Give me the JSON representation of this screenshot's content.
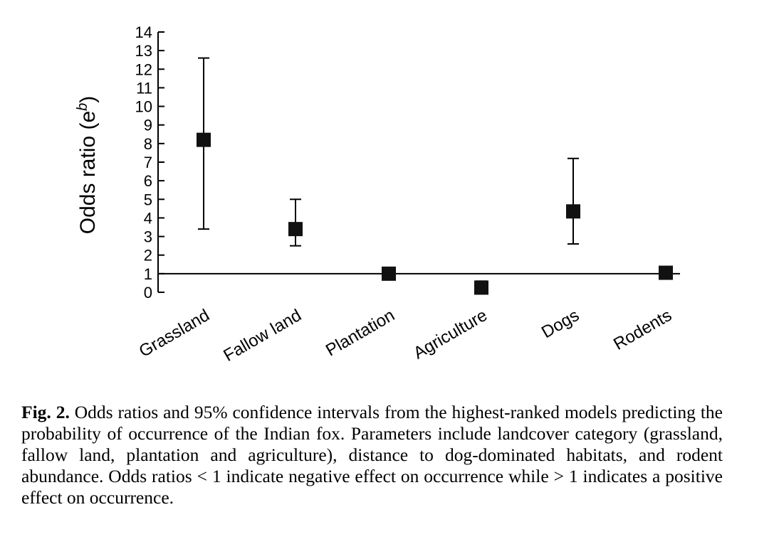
{
  "chart_data": {
    "type": "scatter",
    "title": "",
    "ylabel": "Odds ratio (e",
    "ylabel_sup": "b",
    "ylabel_close": ")",
    "xlabel": "",
    "ylim": [
      0,
      14
    ],
    "yticks": [
      "0",
      "1",
      "2",
      "3",
      "4",
      "5",
      "6",
      "7",
      "8",
      "9",
      "10",
      "11",
      "12",
      "13",
      "14"
    ],
    "reference_line": 1,
    "grid": false,
    "categories": [
      "Grassland",
      "Fallow land",
      "Plantation",
      "Agriculture",
      "Dogs",
      "Rodents"
    ],
    "values": [
      8.2,
      3.4,
      1.0,
      0.25,
      4.35,
      1.05
    ],
    "ci_lower": [
      3.4,
      2.5,
      null,
      0.05,
      2.6,
      null
    ],
    "ci_upper": [
      12.6,
      5.0,
      null,
      0.6,
      7.2,
      null
    ]
  },
  "caption": {
    "lead": "Fig. 2.",
    "text": " Odds ratios and 95% confidence intervals from the highest-ranked models predicting the probability of occurrence of the Indian fox. Parameters include landcover category (grassland, fallow land, plantation and agriculture), distance to dog-dominated habitats, and rodent abundance. Odds ratios  < 1 indicate negative effect on occurrence while > 1 indicates a positive effect on occurrence."
  }
}
